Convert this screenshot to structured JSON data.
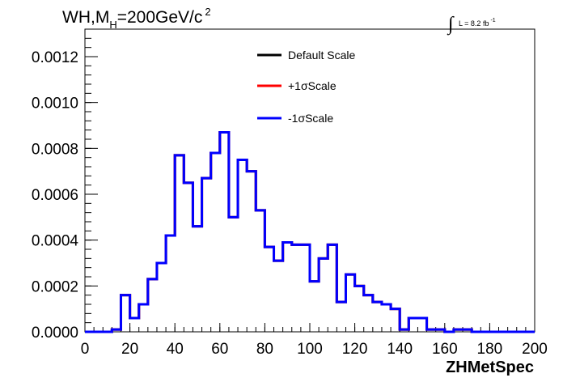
{
  "chart_data": {
    "type": "line",
    "title": {
      "main": "WH,M",
      "sub": "H",
      "rest": "=200GeV/c",
      "sup": "2"
    },
    "lumi_label": {
      "symbol": "∫",
      "text": "L = 8.2 fb",
      "sup": "-1"
    },
    "xlabel": "ZHMetSpec",
    "ylabel": "",
    "xlim": [
      0,
      200
    ],
    "ylim": [
      0,
      0.00132
    ],
    "x_ticks": [
      "0",
      "20",
      "40",
      "60",
      "80",
      "100",
      "120",
      "140",
      "160",
      "180",
      "200"
    ],
    "y_ticks": [
      "0.0000",
      "0.0002",
      "0.0004",
      "0.0006",
      "0.0008",
      "0.0010",
      "0.0012"
    ],
    "bin_width": 4,
    "legend_position": "top-center",
    "series": [
      {
        "name": "Default Scale",
        "color": "#000000",
        "values": [
          0,
          0,
          0,
          1e-05,
          0.00016,
          6e-05,
          0.00012,
          0.00023,
          0.0003,
          0.00042,
          0.00077,
          0.00065,
          0.00046,
          0.00067,
          0.00078,
          0.00087,
          0.0005,
          0.00075,
          0.0007,
          0.00053,
          0.00037,
          0.00031,
          0.00039,
          0.00038,
          0.00038,
          0.00022,
          0.00032,
          0.00038,
          0.00013,
          0.00025,
          0.0002,
          0.00016,
          0.00013,
          0.00012,
          0.0001,
          1e-05,
          6e-05,
          6e-05,
          1e-05,
          1e-05,
          0,
          1e-05,
          1e-05,
          0,
          0,
          0,
          0,
          0,
          0,
          0
        ]
      },
      {
        "name": "+1σScale",
        "color": "#ff0000",
        "values": [
          0,
          0,
          0,
          1e-05,
          0.00016,
          6e-05,
          0.00012,
          0.00023,
          0.0003,
          0.00042,
          0.00077,
          0.00065,
          0.00046,
          0.00067,
          0.00078,
          0.00087,
          0.0005,
          0.00075,
          0.0007,
          0.00053,
          0.00037,
          0.00031,
          0.00039,
          0.00038,
          0.00038,
          0.00022,
          0.00032,
          0.00038,
          0.00013,
          0.00025,
          0.0002,
          0.00016,
          0.00013,
          0.00012,
          0.0001,
          1e-05,
          6e-05,
          6e-05,
          1e-05,
          1e-05,
          0,
          1e-05,
          1e-05,
          0,
          0,
          0,
          0,
          0,
          0,
          0
        ]
      },
      {
        "name": "-1σScale",
        "color": "#0000ff",
        "values": [
          0,
          0,
          0,
          1e-05,
          0.00016,
          6e-05,
          0.00012,
          0.00023,
          0.0003,
          0.00042,
          0.00077,
          0.00065,
          0.00046,
          0.00067,
          0.00078,
          0.00087,
          0.0005,
          0.00075,
          0.0007,
          0.00053,
          0.00037,
          0.00031,
          0.00039,
          0.00038,
          0.00038,
          0.00022,
          0.00032,
          0.00038,
          0.00013,
          0.00025,
          0.0002,
          0.00016,
          0.00013,
          0.00012,
          0.0001,
          1e-05,
          6e-05,
          6e-05,
          1e-05,
          1e-05,
          0,
          1e-05,
          1e-05,
          0,
          0,
          0,
          0,
          0,
          0,
          0
        ]
      }
    ]
  }
}
